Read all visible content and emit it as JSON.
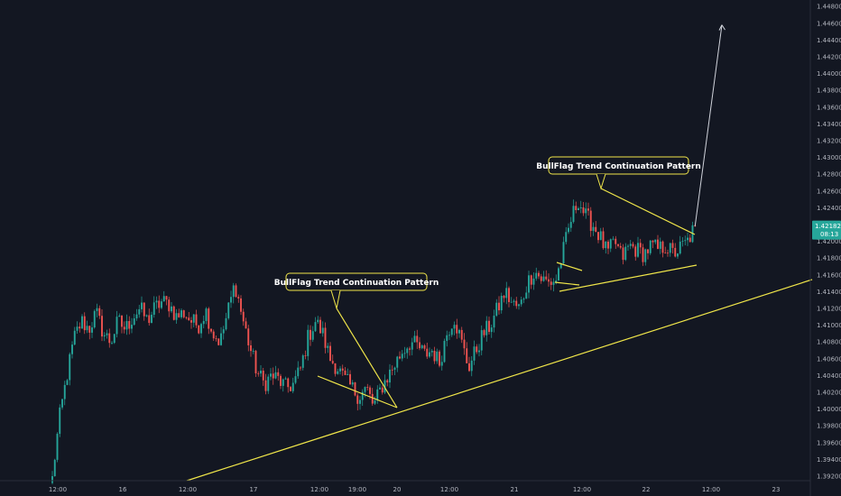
{
  "chart_data": {
    "type": "candlestick",
    "title": "",
    "xlabel": "",
    "ylabel": "",
    "ylim": [
      1.3915,
      1.4495
    ],
    "grid": false,
    "y_ticks": [
      "1.44800",
      "1.44600",
      "1.44400",
      "1.44200",
      "1.44000",
      "1.43800",
      "1.43600",
      "1.43400",
      "1.43200",
      "1.43000",
      "1.42800",
      "1.42600",
      "1.42400",
      "1.42200",
      "1.42000",
      "1.41800",
      "1.41600",
      "1.41400",
      "1.41200",
      "1.41000",
      "1.40800",
      "1.40600",
      "1.40400",
      "1.40200",
      "1.40000",
      "1.39800",
      "1.39600",
      "1.39400",
      "1.39200"
    ],
    "x_ticks": [
      "12:00",
      "16",
      "12:00",
      "17",
      "12:00",
      "19:00",
      "20",
      "12:00",
      "21",
      "12:00",
      "22",
      "12:00",
      "23"
    ],
    "price_path": [
      1.392,
      1.399,
      1.404,
      1.4085,
      1.4105,
      1.4095,
      1.4115,
      1.409,
      1.408,
      1.4105,
      1.4095,
      1.411,
      1.412,
      1.4105,
      1.412,
      1.4128,
      1.4125,
      1.411,
      1.4115,
      1.4105,
      1.41,
      1.4118,
      1.409,
      1.408,
      1.4115,
      1.415,
      1.411,
      1.4075,
      1.4045,
      1.403,
      1.404,
      1.4035,
      1.4025,
      1.403,
      1.4048,
      1.4085,
      1.4105,
      1.409,
      1.406,
      1.405,
      1.4035,
      1.4025,
      1.4015,
      1.4025,
      1.4003,
      1.4025,
      1.404,
      1.4055,
      1.407,
      1.408,
      1.4075,
      1.4065,
      1.407,
      1.4055,
      1.409,
      1.411,
      1.408,
      1.405,
      1.407,
      1.409,
      1.41,
      1.412,
      1.414,
      1.4125,
      1.412,
      1.415,
      1.4165,
      1.4155,
      1.415,
      1.4155,
      1.419,
      1.4225,
      1.425,
      1.423,
      1.422,
      1.4205,
      1.4185,
      1.42,
      1.418,
      1.4195,
      1.419,
      1.4185,
      1.4195,
      1.419,
      1.4195,
      1.4185,
      1.4192,
      1.42,
      1.4218
    ],
    "current_price": "1.42182",
    "countdown": "08:13",
    "projection_target": 1.4458,
    "annotations": [
      {
        "text": "BullFlag Trend Continuation Pattern"
      },
      {
        "text": "BullFlag Trend Continuation Pattern"
      }
    ],
    "colors": {
      "background": "#131722",
      "up_candle": "#26a69a",
      "down_candle": "#ef5350",
      "trendline": "#f0e64a",
      "axis_text": "#b2b5be",
      "projection_arrow": "#d1d4dc"
    }
  }
}
